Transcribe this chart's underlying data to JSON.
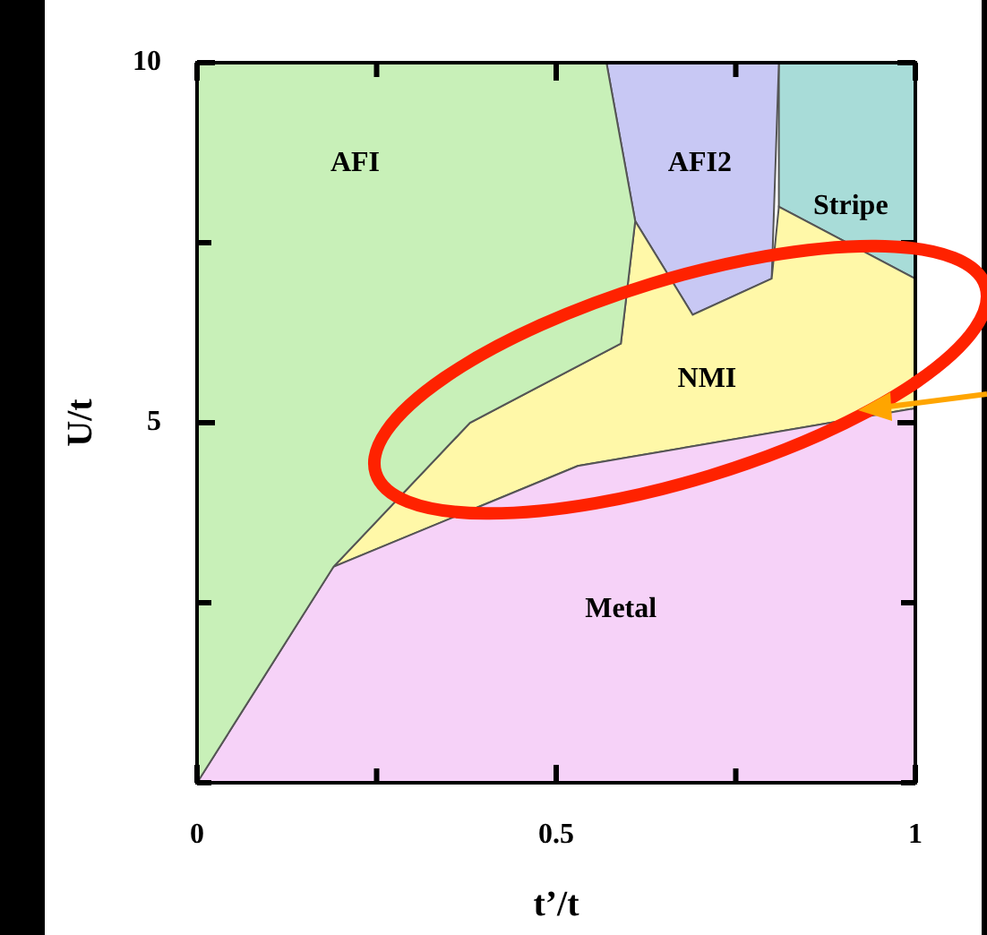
{
  "chart_data": {
    "type": "area",
    "xlabel": "t’/t",
    "ylabel": "U/t",
    "xlim": [
      0,
      1
    ],
    "ylim": [
      0,
      10
    ],
    "xticks": [
      0,
      {
        "value": 0.25,
        "label": null
      },
      0.5,
      {
        "value": 0.75,
        "label": null
      },
      1
    ],
    "yticks": [
      {
        "value": 0,
        "label": null
      },
      {
        "value": 2.5,
        "label": null
      },
      5,
      {
        "value": 7.5,
        "label": null
      },
      10
    ],
    "series": [
      {
        "name": "AFI",
        "color": "#c8f0b8",
        "x": [
          0,
          0,
          0.57,
          0.61,
          0.59,
          0.38,
          0.19,
          0
        ],
        "values": [
          0,
          10,
          10,
          7.8,
          6.1,
          5.0,
          3.0,
          0
        ]
      },
      {
        "name": "Metal",
        "color": "#f6d2f8",
        "x": [
          0,
          0.19,
          0.53,
          1,
          1,
          0
        ],
        "values": [
          0,
          3.0,
          4.4,
          5.2,
          0,
          0
        ]
      },
      {
        "name": "NMI",
        "color": "#fff8a8",
        "x": [
          0.19,
          0.38,
          0.59,
          0.61,
          0.69,
          0.8,
          0.81,
          1,
          1,
          0.53,
          0.19
        ],
        "values": [
          3.0,
          5.0,
          6.1,
          7.8,
          6.5,
          7.0,
          8.0,
          7.0,
          5.2,
          4.4,
          3.0
        ]
      },
      {
        "name": "AFI2",
        "color": "#c8c8f4",
        "x": [
          0.57,
          0.61,
          0.69,
          0.8,
          0.81,
          0.57
        ],
        "values": [
          10,
          7.8,
          6.5,
          7.0,
          10,
          10
        ]
      },
      {
        "name": "Stripe",
        "color": "#a8dcd8",
        "x": [
          0.81,
          1,
          1,
          0.81,
          0.81
        ],
        "values": [
          10,
          10,
          7.0,
          8.0,
          10
        ]
      }
    ]
  }
}
